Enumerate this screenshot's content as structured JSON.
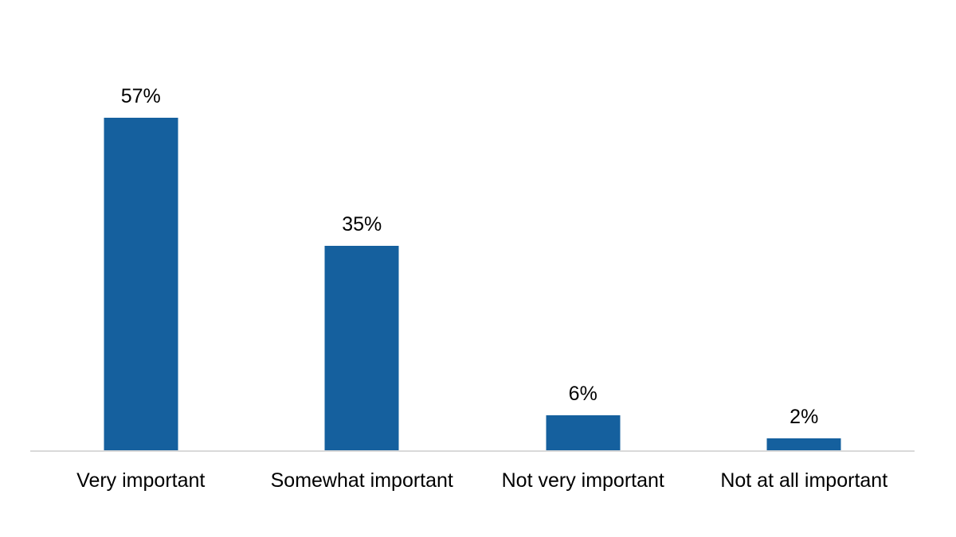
{
  "chart_data": {
    "type": "bar",
    "title": "",
    "xlabel": "",
    "ylabel": "",
    "categories": [
      "Very important",
      "Somewhat important",
      "Not very important",
      "Not at all important"
    ],
    "values": [
      57,
      35,
      6,
      2
    ],
    "value_labels": [
      "57%",
      "35%",
      "6%",
      "2%"
    ],
    "unit": "%",
    "bar_color": "#15609E",
    "axis_line_color": "#D9D9D9",
    "text_color": "#000000",
    "grid": false,
    "legend": false,
    "y_axis_visible": false,
    "value_labels_position": "above-bars"
  }
}
